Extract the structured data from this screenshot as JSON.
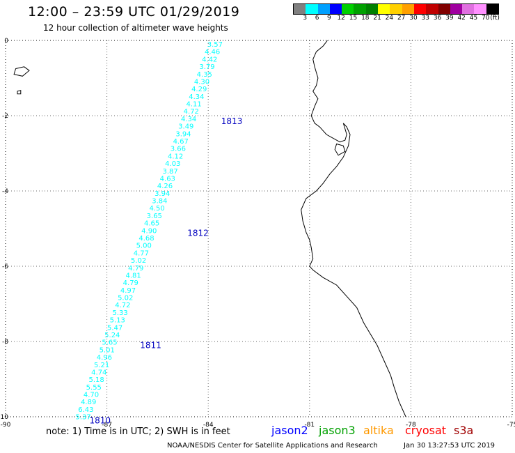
{
  "header": {
    "title": "12:00 – 23:59 UTC 01/29/2019",
    "subtitle": "12 hour collection of altimeter wave heights"
  },
  "legend": {
    "colors": [
      "#808080",
      "#00ffff",
      "#00a0ff",
      "#0000ff",
      "#00d000",
      "#00a000",
      "#008000",
      "#ffff00",
      "#ffd000",
      "#ffa000",
      "#ff0000",
      "#c00000",
      "#800000",
      "#a000a0",
      "#e070e0",
      "#ff90ff",
      "#000000"
    ],
    "labels": [
      "3",
      "6",
      "9",
      "12",
      "15",
      "18",
      "21",
      "24",
      "27",
      "30",
      "33",
      "36",
      "39",
      "42",
      "45",
      "70",
      "(ft)"
    ]
  },
  "axes": {
    "x_ticks": [
      "-90",
      "-87",
      "-84",
      "-81",
      "-78",
      "-75"
    ],
    "y_ticks": [
      "0",
      "-2",
      "-4",
      "-6",
      "-8",
      "-10"
    ]
  },
  "track": {
    "color": "#00ffff",
    "start": {
      "lon": -83.8,
      "lat": 0.0
    },
    "end": {
      "lon": -87.7,
      "lat": -9.9
    },
    "values": [
      "3.57",
      "4.46",
      "4.42",
      "3.79",
      "4.35",
      "4.30",
      "4.29",
      "4.34",
      "4.11",
      "4.72",
      "4.34",
      "3.49",
      "3.94",
      "4.67",
      "3.66",
      "4.12",
      "4.03",
      "3.87",
      "4.63",
      "4.26",
      "3.94",
      "3.84",
      "4.50",
      "3.65",
      "4.65",
      "4.90",
      "4.68",
      "5.00",
      "4.77",
      "5.02",
      "4.79",
      "4.81",
      "4.79",
      "4.97",
      "5.02",
      "4.72",
      "5.33",
      "5.13",
      "5.47",
      "5.24",
      "5.65",
      "5.01",
      "4.96",
      "5.21",
      "4.74",
      "5.18",
      "5.55",
      "4.70",
      "4.89",
      "6.43",
      "5.37"
    ]
  },
  "track_ids": [
    {
      "text": "1813",
      "lon": -83.7,
      "lat": -2.15
    },
    {
      "text": "1812",
      "lon": -84.7,
      "lat": -5.12
    },
    {
      "text": "1811",
      "lon": -86.1,
      "lat": -8.1
    },
    {
      "text": "1810",
      "lon": -87.6,
      "lat": -10.1
    }
  ],
  "track_id_color": "#0000c0",
  "footer": {
    "note": "note:  1) Time is in UTC;  2) SWH is in feet",
    "credit": "NOAA/NESDIS Center for Satellite Applications and Research",
    "timestamp": "Jan 30 13:27:53 UTC 2019"
  },
  "satellites": [
    {
      "name": "jason2",
      "color": "#0000ff"
    },
    {
      "name": "jason3",
      "color": "#00a000"
    },
    {
      "name": "altika",
      "color": "#ff9900"
    },
    {
      "name": "cryosat",
      "color": "#ff0000"
    },
    {
      "name": "s3a",
      "color": "#a00000"
    }
  ]
}
